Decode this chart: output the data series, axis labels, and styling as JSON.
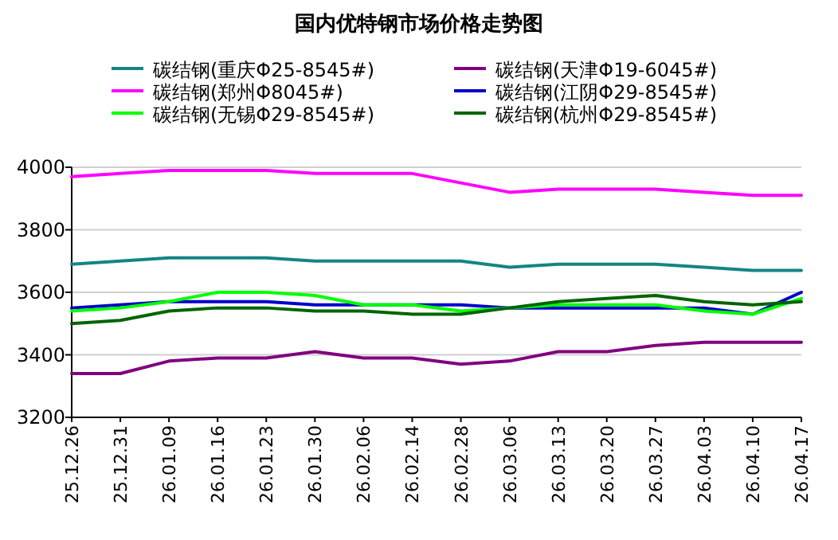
{
  "chart_data": {
    "type": "line",
    "title": "国内优特钢市场价格走势图",
    "categories": [
      "25.12.26",
      "25.12.31",
      "26.01.09",
      "26.01.16",
      "26.01.23",
      "26.01.30",
      "26.02.06",
      "26.02.14",
      "26.02.28",
      "26.03.06",
      "26.03.13",
      "26.03.20",
      "26.03.27",
      "26.04.03",
      "26.04.10",
      "26.04.17"
    ],
    "series": [
      {
        "name": "碳结钢(重庆Φ25-8545#)",
        "color": "#138585",
        "values": [
          3690,
          3700,
          3710,
          3710,
          3710,
          3700,
          3700,
          3700,
          3700,
          3680,
          3690,
          3690,
          3690,
          3680,
          3670,
          3670
        ]
      },
      {
        "name": "碳结钢(天津Φ19-6045#)",
        "color": "#800080",
        "values": [
          3340,
          3340,
          3380,
          3390,
          3390,
          3410,
          3390,
          3390,
          3370,
          3380,
          3410,
          3410,
          3430,
          3440,
          3440,
          3440
        ]
      },
      {
        "name": "碳结钢(郑州Φ8045#)",
        "color": "#ff00ff",
        "values": [
          3970,
          3980,
          3990,
          3990,
          3990,
          3980,
          3980,
          3980,
          3950,
          3920,
          3930,
          3930,
          3930,
          3920,
          3910,
          3910
        ]
      },
      {
        "name": "碳结钢(江阴Φ29-8545#)",
        "color": "#0000cc",
        "values": [
          3550,
          3560,
          3570,
          3570,
          3570,
          3560,
          3560,
          3560,
          3560,
          3550,
          3550,
          3550,
          3550,
          3550,
          3530,
          3600
        ]
      },
      {
        "name": "碳结钢(无锡Φ29-8545#)",
        "color": "#00ff00",
        "values": [
          3540,
          3550,
          3570,
          3600,
          3600,
          3590,
          3560,
          3560,
          3540,
          3550,
          3560,
          3560,
          3560,
          3540,
          3530,
          3580
        ]
      },
      {
        "name": "碳结钢(杭州Φ29-8545#)",
        "color": "#006400",
        "values": [
          3500,
          3510,
          3540,
          3550,
          3550,
          3540,
          3540,
          3530,
          3530,
          3550,
          3570,
          3580,
          3590,
          3570,
          3560,
          3570
        ]
      }
    ],
    "ylim": [
      3200,
      4000
    ],
    "yticks": [
      3200,
      3400,
      3600,
      3800,
      4000
    ],
    "grid": "y",
    "legend": "top",
    "marker": "none",
    "line_style": "solid"
  }
}
